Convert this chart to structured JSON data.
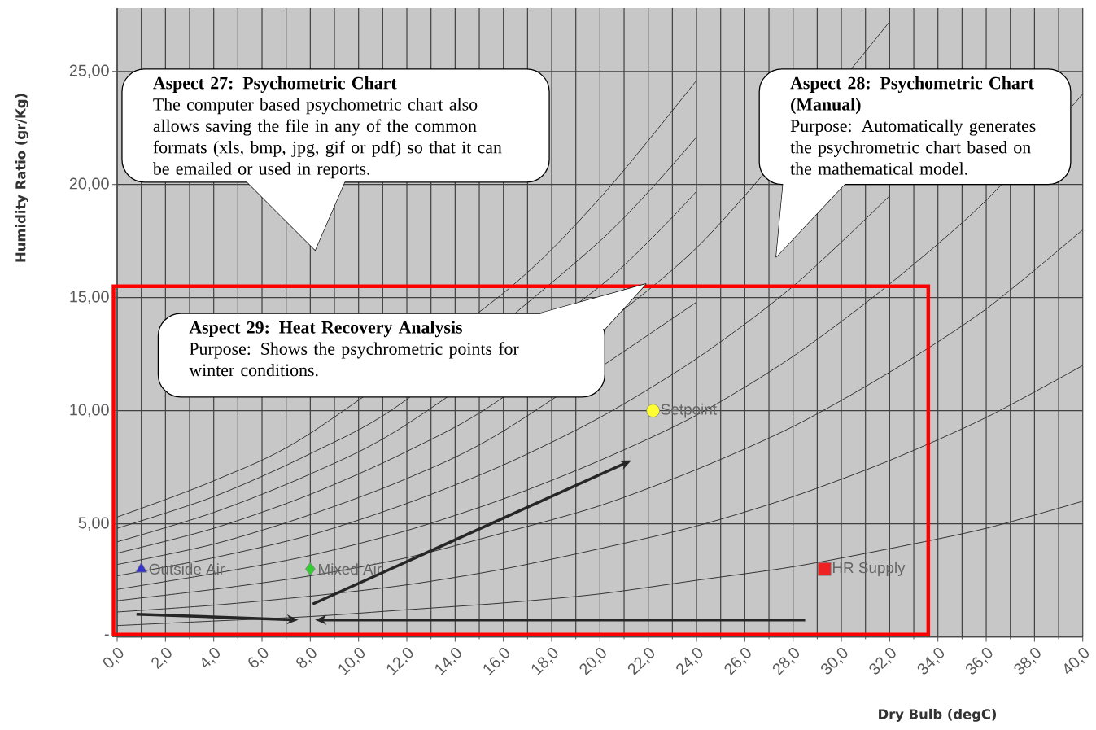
{
  "chart_data": {
    "type": "scatter",
    "xlabel": "Dry Bulb (degC)",
    "ylabel": "Humidity Ratio (gr/Kg)",
    "xlim": [
      0,
      40
    ],
    "ylim": [
      0,
      27.8
    ],
    "xticks": [
      {
        "value": 0,
        "label": "0,0"
      },
      {
        "value": 2,
        "label": "2,0"
      },
      {
        "value": 4,
        "label": "4,0"
      },
      {
        "value": 6,
        "label": "6,0"
      },
      {
        "value": 8,
        "label": "8,0"
      },
      {
        "value": 10,
        "label": "10,0"
      },
      {
        "value": 12,
        "label": "12,0"
      },
      {
        "value": 14,
        "label": "14,0"
      },
      {
        "value": 16,
        "label": "16,0"
      },
      {
        "value": 18,
        "label": "18,0"
      },
      {
        "value": 20,
        "label": "20,0"
      },
      {
        "value": 22,
        "label": "22,0"
      },
      {
        "value": 24,
        "label": "24,0"
      },
      {
        "value": 26,
        "label": "26,0"
      },
      {
        "value": 28,
        "label": "28,0"
      },
      {
        "value": 30,
        "label": "30,0"
      },
      {
        "value": 32,
        "label": "32,0"
      },
      {
        "value": 34,
        "label": "34,0"
      },
      {
        "value": 36,
        "label": "36,0"
      },
      {
        "value": 38,
        "label": "38,0"
      },
      {
        "value": 40,
        "label": "40,0"
      }
    ],
    "yticks": [
      {
        "value": 0,
        "label": "-"
      },
      {
        "value": 5,
        "label": "5,00"
      },
      {
        "value": 10,
        "label": "10,00"
      },
      {
        "value": 15,
        "label": "15,00"
      },
      {
        "value": 20,
        "label": "20,00"
      },
      {
        "value": 25,
        "label": "25,00"
      }
    ],
    "grid": true,
    "annotations": [
      "Aspect 27: Psychometric Chart",
      "The computer based psychometric chart also allows saving the file in any of the common formats (xls, bmp, jpg, gif or pdf) so that it can be emailed or used in reports.",
      "Aspect 28: Psychometric Chart (Manual)",
      "Purpose:  Automatically generates the psychrometric chart based on the mathematical model.",
      "Aspect 29: Heat Recovery Analysis",
      "Purpose: Shows the psychrometric points for winter conditions."
    ],
    "series": [
      {
        "type": "line",
        "color": "#333333",
        "x": [
          0,
          4,
          8,
          12,
          16,
          20,
          24,
          28,
          32,
          36,
          40
        ],
        "values": [
          0.5,
          0.7,
          0.9,
          1.2,
          1.5,
          1.9,
          2.5,
          3.1,
          3.9,
          4.8,
          6.0
        ]
      },
      {
        "type": "line",
        "color": "#333333",
        "x": [
          0,
          4,
          8,
          12,
          16,
          20,
          24,
          28,
          32,
          36,
          40
        ],
        "values": [
          1.1,
          1.4,
          1.8,
          2.3,
          3.0,
          3.9,
          4.9,
          6.2,
          7.8,
          9.7,
          12.0
        ]
      },
      {
        "type": "line",
        "color": "#333333",
        "x": [
          0,
          4,
          8,
          12,
          16,
          20,
          24,
          28,
          32,
          36,
          40
        ],
        "values": [
          1.6,
          2.1,
          2.7,
          3.5,
          4.6,
          5.8,
          7.4,
          9.3,
          11.7,
          14.5,
          18.0
        ]
      },
      {
        "type": "line",
        "color": "#333333",
        "x": [
          0,
          4,
          8,
          12,
          16,
          20,
          24,
          28,
          32,
          36,
          40
        ],
        "values": [
          2.1,
          2.8,
          3.6,
          4.7,
          6.1,
          7.8,
          9.8,
          12.4,
          15.6,
          19.3,
          24.0
        ]
      },
      {
        "type": "line",
        "color": "#333333",
        "x": [
          0,
          4,
          8,
          12,
          16,
          20,
          24,
          28,
          32
        ],
        "values": [
          2.7,
          3.5,
          4.5,
          5.9,
          7.6,
          9.7,
          12.3,
          15.5,
          19.5
        ]
      },
      {
        "type": "line",
        "color": "#333333",
        "x": [
          0,
          4,
          8,
          12,
          16,
          20,
          24
        ],
        "values": [
          3.2,
          4.1,
          5.4,
          7.0,
          9.1,
          null,
          14.8
        ]
      },
      {
        "type": "line",
        "color": "#333333",
        "x": [
          0,
          4,
          8,
          12,
          16,
          20,
          24,
          28,
          32
        ],
        "values": [
          3.7,
          4.8,
          6.3,
          8.2,
          10.6,
          null,
          17.2,
          null,
          27.2
        ]
      },
      {
        "type": "line",
        "color": "#333333",
        "x": [
          0,
          4,
          8,
          12,
          16,
          20,
          24
        ],
        "values": [
          4.2,
          5.5,
          7.2,
          9.4,
          null,
          15.5,
          19.7
        ]
      },
      {
        "type": "line",
        "color": "#333333",
        "x": [
          0,
          4,
          8,
          12,
          16,
          20,
          24
        ],
        "values": [
          4.8,
          6.2,
          8.1,
          10.5,
          null,
          17.5,
          22.1
        ]
      },
      {
        "type": "line",
        "color": "#333333",
        "x": [
          0,
          4,
          8,
          12,
          16,
          20,
          24
        ],
        "values": [
          5.3,
          6.9,
          9.0,
          null,
          15.2,
          19.4,
          24.6
        ]
      },
      {
        "name": "Outside Air",
        "color": "#3333cc",
        "marker": "triangle",
        "x": [
          1.0
        ],
        "values": [
          3.0
        ]
      },
      {
        "name": "Mixed Air",
        "color": "#33cc33",
        "marker": "diamond",
        "x": [
          8.0
        ],
        "values": [
          3.0
        ]
      },
      {
        "name": "Setpoint",
        "color": "#ffff33",
        "marker": "circle",
        "x": [
          22.2
        ],
        "values": [
          10.0
        ]
      },
      {
        "name": "HR Supply",
        "color": "#ee2222",
        "marker": "square",
        "x": [
          29.3
        ],
        "values": [
          3.0
        ]
      }
    ]
  }
}
